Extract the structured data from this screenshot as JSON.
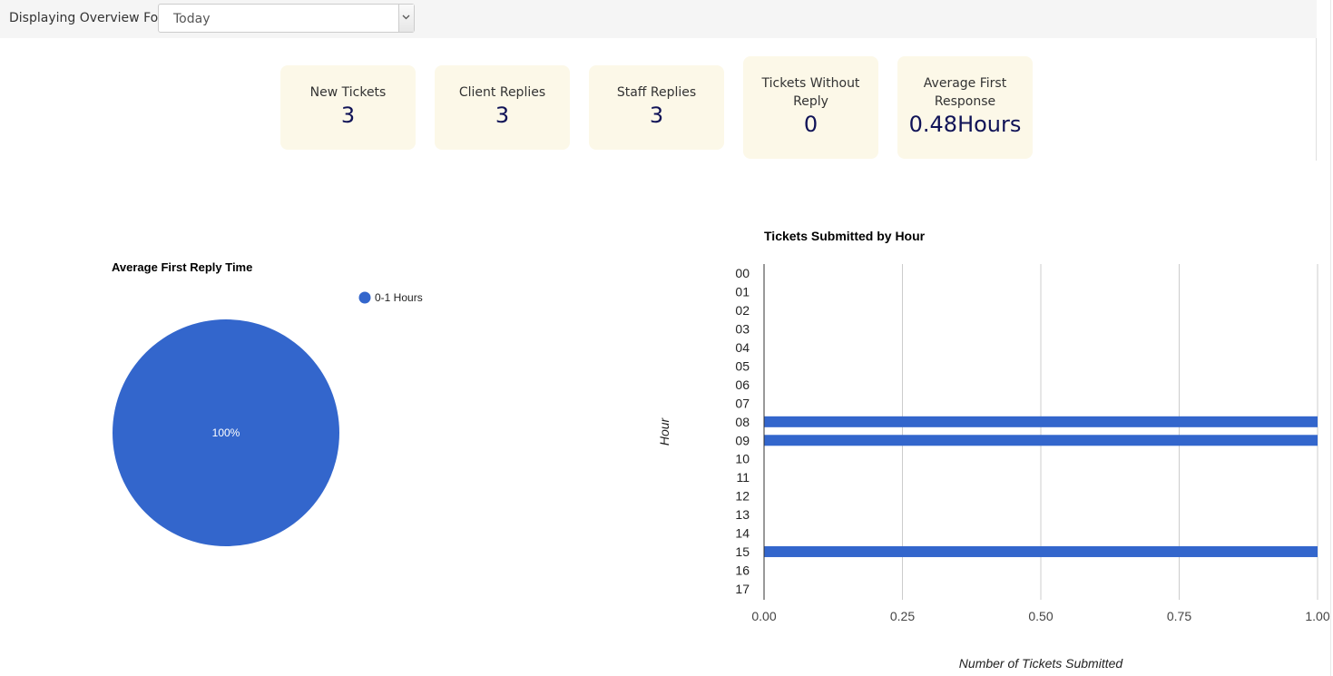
{
  "filter": {
    "label": "Displaying Overview For:",
    "selected": "Today"
  },
  "stats": [
    {
      "label": "New Tickets",
      "value": "3"
    },
    {
      "label": "Client Replies",
      "value": "3"
    },
    {
      "label": "Staff Replies",
      "value": "3"
    },
    {
      "label": "Tickets Without Reply",
      "value": "0"
    },
    {
      "label": "Average First Response",
      "value": "0.48Hours"
    }
  ],
  "colors": {
    "series": "#3366cc",
    "stat_bg": "#fcf8e8",
    "stat_value": "#101357"
  },
  "chart_data": [
    {
      "type": "pie",
      "title": "Average First Reply Time",
      "legend_position": "top-right",
      "slices": [
        {
          "label": "0-1 Hours",
          "value": 100,
          "display": "100%"
        }
      ]
    },
    {
      "type": "bar",
      "orientation": "horizontal",
      "title": "Tickets Submitted by Hour",
      "xlabel": "Number of Tickets Submitted",
      "ylabel": "Hour",
      "xlim": [
        0,
        1
      ],
      "x_ticks": [
        "0.00",
        "0.25",
        "0.50",
        "0.75",
        "1.00"
      ],
      "grid": true,
      "categories": [
        "00",
        "01",
        "02",
        "03",
        "04",
        "05",
        "06",
        "07",
        "08",
        "09",
        "10",
        "11",
        "12",
        "13",
        "14",
        "15",
        "16",
        "17"
      ],
      "values": [
        0,
        0,
        0,
        0,
        0,
        0,
        0,
        0,
        1,
        1,
        0,
        0,
        0,
        0,
        0,
        1,
        0,
        0
      ]
    }
  ]
}
